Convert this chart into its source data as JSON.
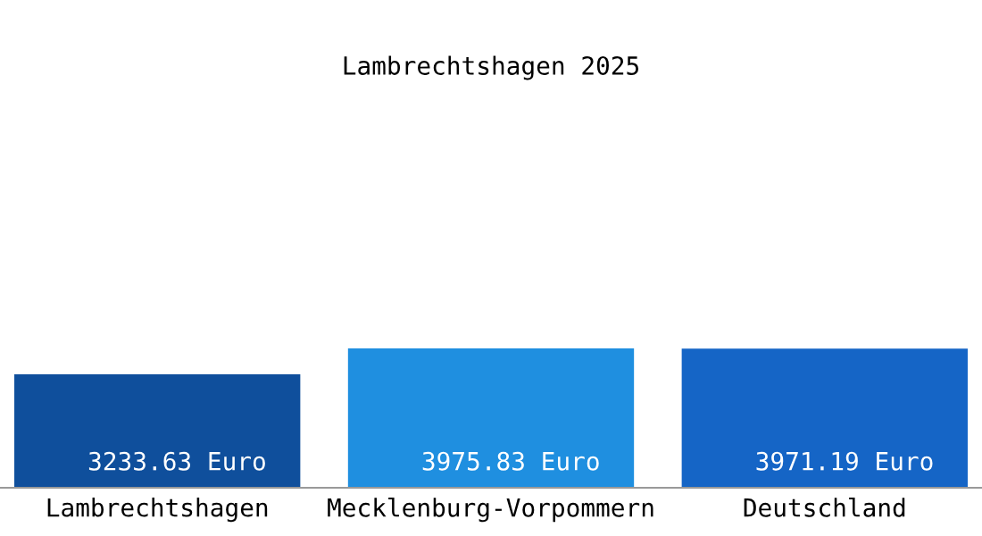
{
  "chart_data": {
    "type": "bar",
    "title": "Lambrechtshagen 2025",
    "categories": [
      "Lambrechtshagen",
      "Mecklenburg-Vorpommern",
      "Deutschland"
    ],
    "values": [
      3233.63,
      3975.83,
      3971.19
    ],
    "colors": [
      "#0f4f9c",
      "#1f8fe0",
      "#1565c6"
    ],
    "value_labels": [
      "3233.63 Euro",
      "3975.83 Euro",
      "3971.19 Euro"
    ],
    "grid": false,
    "legend": false
  }
}
